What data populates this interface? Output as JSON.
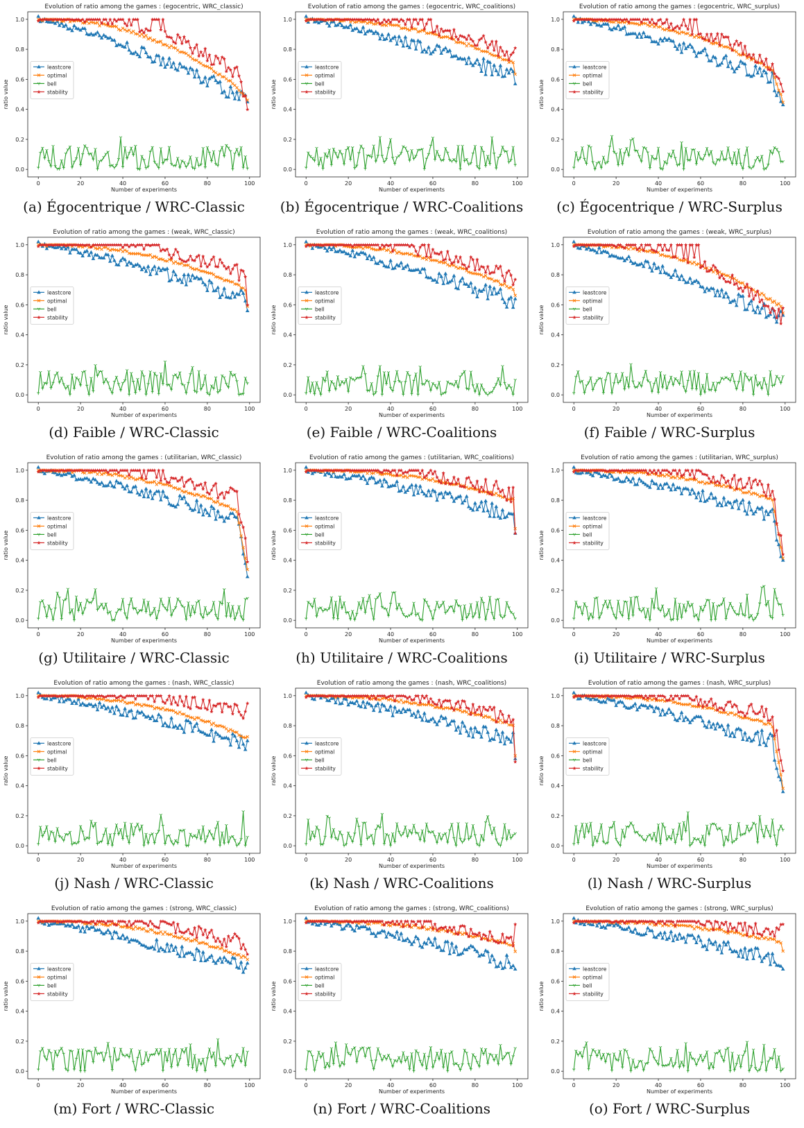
{
  "legend_entries": [
    {
      "name": "leastcore",
      "color": "#1f77b4",
      "marker": "triangle"
    },
    {
      "name": "optimal",
      "color": "#ff7f0e",
      "marker": "x"
    },
    {
      "name": "bell",
      "color": "#2ca02c",
      "marker": "tri_down"
    },
    {
      "name": "stability",
      "color": "#d62728",
      "marker": "star"
    }
  ],
  "chart_data": [
    {
      "type": "line",
      "title": "Evolution of ratio among the games : (egocentric, WRC_classic)",
      "caption": "(a) Égocentrique / WRC-Classic",
      "xlabel": "Number of experiments",
      "ylabel": "ratio value",
      "xlim": [
        0,
        100
      ],
      "ylim": [
        0,
        1
      ],
      "x_ticks": [
        "0",
        "20",
        "40",
        "60",
        "80",
        "100"
      ],
      "y_ticks": [
        "0.0",
        "0.2",
        "0.4",
        "0.6",
        "0.8",
        "1.0"
      ],
      "legend_position": "center-left",
      "grid": false,
      "end": {
        "leastcore": 0.45,
        "optimal": 0.47,
        "stability": 0.4
      },
      "min": {
        "leastcore": 0.52,
        "optimal": 0.55,
        "stability": 0.62
      },
      "bell_max": 0.28
    },
    {
      "type": "line",
      "title": "Evolution of ratio among the games : (egocentric, WRC_coalitions)",
      "caption": "(b) Égocentrique / WRC-Coalitions",
      "xlabel": "Number of experiments",
      "ylabel": "ratio value",
      "xlim": [
        0,
        100
      ],
      "ylim": [
        0,
        1
      ],
      "x_ticks": [
        "0",
        "20",
        "40",
        "60",
        "80",
        "100"
      ],
      "y_ticks": [
        "0.0",
        "0.2",
        "0.4",
        "0.6",
        "0.8",
        "1.0"
      ],
      "legend_position": "center-left",
      "grid": false,
      "end": {
        "leastcore": 0.57,
        "optimal": 0.63,
        "stability": 0.81
      },
      "min": {
        "leastcore": 0.64,
        "optimal": 0.7,
        "stability": 0.74
      },
      "bell_max": 0.25
    },
    {
      "type": "line",
      "title": "Evolution of ratio among the games : (egocentric, WRC_surplus)",
      "caption": "(c) Égocentrique / WRC-Surplus",
      "xlabel": "Number of experiments",
      "ylabel": "ratio value",
      "xlim": [
        0,
        100
      ],
      "ylim": [
        0,
        1
      ],
      "x_ticks": [
        "0",
        "20",
        "40",
        "60",
        "80",
        "100"
      ],
      "y_ticks": [
        "0.0",
        "0.2",
        "0.4",
        "0.6",
        "0.8",
        "1.0"
      ],
      "legend_position": "center-left",
      "grid": false,
      "end": {
        "leastcore": 0.43,
        "optimal": 0.45,
        "stability": 0.52
      },
      "min": {
        "leastcore": 0.62,
        "optimal": 0.66,
        "stability": 0.68
      },
      "bell_max": 0.25
    },
    {
      "type": "line",
      "title": "Evolution of ratio among the games : (weak, WRC_classic)",
      "caption": "(d) Faible / WRC-Classic",
      "xlabel": "Number of experiments",
      "ylabel": "ratio value",
      "xlim": [
        0,
        100
      ],
      "ylim": [
        0,
        1
      ],
      "x_ticks": [
        "0",
        "20",
        "40",
        "60",
        "80",
        "100"
      ],
      "y_ticks": [
        "0.0",
        "0.2",
        "0.4",
        "0.6",
        "0.8",
        "1.0"
      ],
      "legend_position": "center-left",
      "grid": false,
      "end": {
        "leastcore": 0.56,
        "optimal": 0.58,
        "stability": 0.6
      },
      "min": {
        "leastcore": 0.66,
        "optimal": 0.7,
        "stability": 0.78
      },
      "bell_max": 0.25
    },
    {
      "type": "line",
      "title": "Evolution of ratio among the games : (weak, WRC_coalitions)",
      "caption": "(e) Faible / WRC-Coalitions",
      "xlabel": "Number of experiments",
      "ylabel": "ratio value",
      "xlim": [
        0,
        100
      ],
      "ylim": [
        0,
        1
      ],
      "x_ticks": [
        "0",
        "20",
        "40",
        "60",
        "80",
        "100"
      ],
      "y_ticks": [
        "0.0",
        "0.2",
        "0.4",
        "0.6",
        "0.8",
        "1.0"
      ],
      "legend_position": "center-left",
      "grid": false,
      "end": {
        "leastcore": 0.64,
        "optimal": 0.66,
        "stability": 0.77
      },
      "min": {
        "leastcore": 0.64,
        "optimal": 0.7,
        "stability": 0.74
      },
      "bell_max": 0.19
    },
    {
      "type": "line",
      "title": "Evolution of ratio among the games : (weak, WRC_surplus)",
      "caption": "(f) Faible / WRC-Surplus",
      "xlabel": "Number of experiments",
      "ylabel": "ratio value",
      "xlim": [
        0,
        100
      ],
      "ylim": [
        0,
        1
      ],
      "x_ticks": [
        "0",
        "20",
        "40",
        "60",
        "80",
        "100"
      ],
      "y_ticks": [
        "0.0",
        "0.2",
        "0.4",
        "0.6",
        "0.8",
        "1.0"
      ],
      "legend_position": "center-left",
      "grid": false,
      "end": {
        "leastcore": 0.53,
        "optimal": 0.55,
        "stability": 0.58
      },
      "min": {
        "leastcore": 0.52,
        "optimal": 0.58,
        "stability": 0.49
      },
      "bell_max": 0.25
    },
    {
      "type": "line",
      "title": "Evolution of ratio among the games : (utilitarian, WRC_classic)",
      "caption": "(g) Utilitaire / WRC-Classic",
      "xlabel": "Number of experiments",
      "ylabel": "ratio value",
      "xlim": [
        0,
        100
      ],
      "ylim": [
        0,
        1
      ],
      "x_ticks": [
        "0",
        "20",
        "40",
        "60",
        "80",
        "100"
      ],
      "y_ticks": [
        "0.0",
        "0.2",
        "0.4",
        "0.6",
        "0.8",
        "1.0"
      ],
      "legend_position": "center-left",
      "grid": false,
      "end": {
        "leastcore": 0.29,
        "optimal": 0.33,
        "stability": 0.39
      },
      "min": {
        "leastcore": 0.7,
        "optimal": 0.73,
        "stability": 0.8
      },
      "bell_max": 0.25
    },
    {
      "type": "line",
      "title": "Evolution of ratio among the games : (utilitarian, WRC_coalitions)",
      "caption": "(h) Utilitaire / WRC-Coalitions",
      "xlabel": "Number of experiments",
      "ylabel": "ratio value",
      "xlim": [
        0,
        100
      ],
      "ylim": [
        0,
        1
      ],
      "x_ticks": [
        "0",
        "20",
        "40",
        "60",
        "80",
        "100"
      ],
      "y_ticks": [
        "0.0",
        "0.2",
        "0.4",
        "0.6",
        "0.8",
        "1.0"
      ],
      "legend_position": "center-left",
      "grid": false,
      "end": {
        "leastcore": 0.58,
        "optimal": 0.61,
        "stability": 0.58
      },
      "min": {
        "leastcore": 0.72,
        "optimal": 0.8,
        "stability": 0.82
      },
      "bell_max": 0.23
    },
    {
      "type": "line",
      "title": "Evolution of ratio among the games : (utilitarian, WRC_surplus)",
      "caption": "(i) Utilitaire / WRC-Surplus",
      "xlabel": "Number of experiments",
      "ylabel": "ratio value",
      "xlim": [
        0,
        100
      ],
      "ylim": [
        0,
        1
      ],
      "x_ticks": [
        "0",
        "20",
        "40",
        "60",
        "80",
        "100"
      ],
      "y_ticks": [
        "0.0",
        "0.2",
        "0.4",
        "0.6",
        "0.8",
        "1.0"
      ],
      "legend_position": "center-left",
      "grid": false,
      "end": {
        "leastcore": 0.4,
        "optimal": 0.42,
        "stability": 0.44
      },
      "min": {
        "leastcore": 0.72,
        "optimal": 0.8,
        "stability": 0.84
      },
      "bell_max": 0.23
    },
    {
      "type": "line",
      "title": "Evolution of ratio among the games : (nash, WRC_classic)",
      "caption": "(j) Nash / WRC-Classic",
      "xlabel": "Number of experiments",
      "ylabel": "ratio value",
      "xlim": [
        0,
        100
      ],
      "ylim": [
        0,
        1
      ],
      "x_ticks": [
        "0",
        "20",
        "40",
        "60",
        "80",
        "100"
      ],
      "y_ticks": [
        "0.0",
        "0.2",
        "0.4",
        "0.6",
        "0.8",
        "1.0"
      ],
      "legend_position": "center-left",
      "grid": false,
      "end": {
        "leastcore": 0.7,
        "optimal": 0.72,
        "stability": 0.95
      },
      "min": {
        "leastcore": 0.7,
        "optimal": 0.72,
        "stability": 0.86
      },
      "bell_max": 0.26
    },
    {
      "type": "line",
      "title": "Evolution of ratio among the games : (nash, WRC_coalitions)",
      "caption": "(k) Nash / WRC-Coalitions",
      "xlabel": "Number of experiments",
      "ylabel": "ratio value",
      "xlim": [
        0,
        100
      ],
      "ylim": [
        0,
        1
      ],
      "x_ticks": [
        "0",
        "20",
        "40",
        "60",
        "80",
        "100"
      ],
      "y_ticks": [
        "0.0",
        "0.2",
        "0.4",
        "0.6",
        "0.8",
        "1.0"
      ],
      "legend_position": "center-left",
      "grid": false,
      "end": {
        "leastcore": 0.58,
        "optimal": 0.6,
        "stability": 0.56
      },
      "min": {
        "leastcore": 0.72,
        "optimal": 0.8,
        "stability": 0.82
      },
      "bell_max": 0.21
    },
    {
      "type": "line",
      "title": "Evolution of ratio among the games : (nash, WRC_surplus)",
      "caption": "(l) Nash / WRC-Surplus",
      "xlabel": "Number of experiments",
      "ylabel": "ratio value",
      "xlim": [
        0,
        100
      ],
      "ylim": [
        0,
        1
      ],
      "x_ticks": [
        "0",
        "20",
        "40",
        "60",
        "80",
        "100"
      ],
      "y_ticks": [
        "0.0",
        "0.2",
        "0.4",
        "0.6",
        "0.8",
        "1.0"
      ],
      "legend_position": "center-left",
      "grid": false,
      "end": {
        "leastcore": 0.36,
        "optimal": 0.39,
        "stability": 0.5
      },
      "min": {
        "leastcore": 0.72,
        "optimal": 0.8,
        "stability": 0.84
      },
      "bell_max": 0.24
    },
    {
      "type": "line",
      "title": "Evolution of ratio among the games : (strong, WRC_classic)",
      "caption": "(m) Fort / WRC-Classic",
      "xlabel": "Number of experiments",
      "ylabel": "ratio value",
      "xlim": [
        0,
        100
      ],
      "ylim": [
        0,
        1
      ],
      "x_ticks": [
        "0",
        "20",
        "40",
        "60",
        "80",
        "100"
      ],
      "y_ticks": [
        "0.0",
        "0.2",
        "0.4",
        "0.6",
        "0.8",
        "1.0"
      ],
      "legend_position": "center-left",
      "grid": false,
      "end": {
        "leastcore": 0.72,
        "optimal": 0.74,
        "stability": 0.78
      },
      "min": {
        "leastcore": 0.7,
        "optimal": 0.75,
        "stability": 0.82
      },
      "bell_max": 0.26
    },
    {
      "type": "line",
      "title": "Evolution of ratio among the games : (strong, WRC_coalitions)",
      "caption": "(n) Fort / WRC-Coalitions",
      "xlabel": "Number of experiments",
      "ylabel": "ratio value",
      "xlim": [
        0,
        100
      ],
      "ylim": [
        0,
        1
      ],
      "x_ticks": [
        "0",
        "20",
        "40",
        "60",
        "80",
        "100"
      ],
      "y_ticks": [
        "0.0",
        "0.2",
        "0.4",
        "0.6",
        "0.8",
        "1.0"
      ],
      "legend_position": "center-left",
      "grid": false,
      "end": {
        "leastcore": 0.68,
        "optimal": 0.8,
        "stability": 0.98
      },
      "min": {
        "leastcore": 0.74,
        "optimal": 0.84,
        "stability": 0.86
      },
      "bell_max": 0.19
    },
    {
      "type": "line",
      "title": "Evolution of ratio among the games : (strong, WRC_surplus)",
      "caption": "(o) Fort / WRC-Surplus",
      "xlabel": "Number of experiments",
      "ylabel": "ratio value",
      "xlim": [
        0,
        100
      ],
      "ylim": [
        0,
        1
      ],
      "x_ticks": [
        "0",
        "20",
        "40",
        "60",
        "80",
        "100"
      ],
      "y_ticks": [
        "0.0",
        "0.2",
        "0.4",
        "0.6",
        "0.8",
        "1.0"
      ],
      "legend_position": "center-left",
      "grid": false,
      "end": {
        "leastcore": 0.68,
        "optimal": 0.81,
        "stability": 0.98
      },
      "min": {
        "leastcore": 0.76,
        "optimal": 0.86,
        "stability": 0.9
      },
      "bell_max": 0.22
    }
  ]
}
